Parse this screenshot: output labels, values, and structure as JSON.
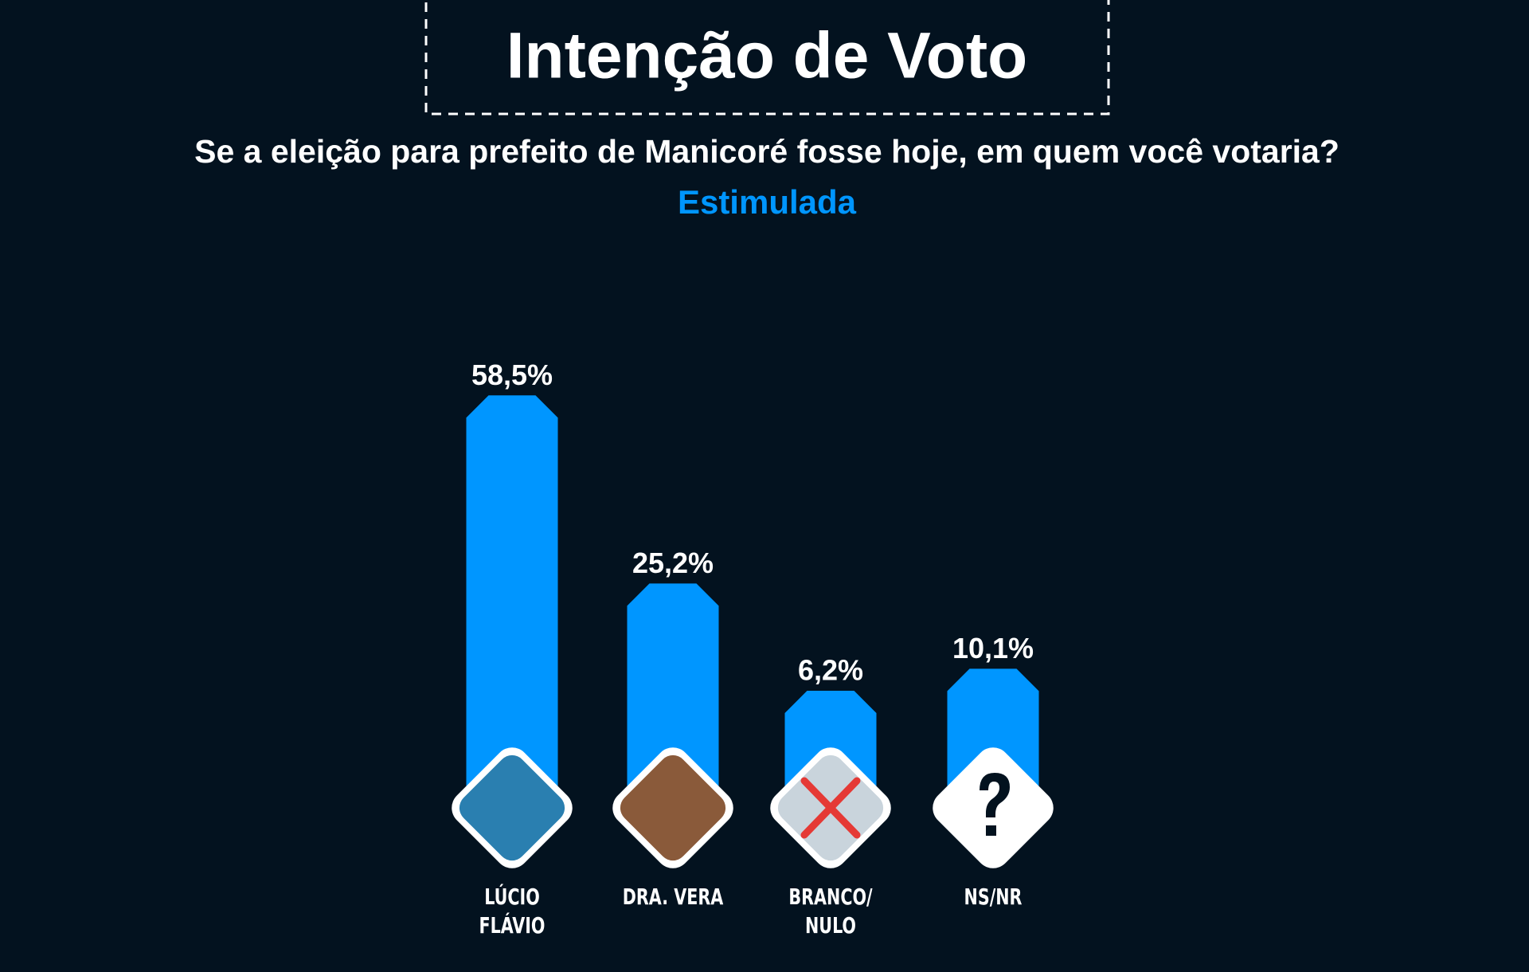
{
  "chart_data": {
    "type": "bar",
    "title": "Intenção de Voto",
    "subtitle": "Se a eleição para prefeito de Manicoré fosse hoje, em quem você votaria?",
    "annotation": "Estimulada",
    "categories": [
      "LÚCIO\nFLÁVIO",
      "DRA. VERA",
      "BRANCO/\nNULO",
      "NS/NR"
    ],
    "values": [
      58.5,
      25.2,
      6.2,
      10.1
    ],
    "value_labels": [
      "58,5%",
      "25,2%",
      "6,2%",
      "10,1%"
    ],
    "color": "#0096ff"
  }
}
